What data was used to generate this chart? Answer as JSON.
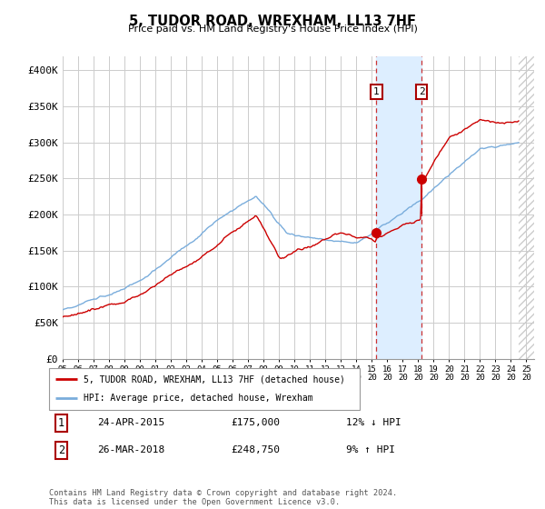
{
  "title": "5, TUDOR ROAD, WREXHAM, LL13 7HF",
  "subtitle": "Price paid vs. HM Land Registry's House Price Index (HPI)",
  "ylabel_ticks": [
    "£0",
    "£50K",
    "£100K",
    "£150K",
    "£200K",
    "£250K",
    "£300K",
    "£350K",
    "£400K"
  ],
  "ytick_values": [
    0,
    50000,
    100000,
    150000,
    200000,
    250000,
    300000,
    350000,
    400000
  ],
  "ylim": [
    0,
    420000
  ],
  "transaction1": {
    "date": "24-APR-2015",
    "price": 175000,
    "hpi_diff": "12% ↓ HPI",
    "label": "1",
    "year": 2015.3
  },
  "transaction2": {
    "date": "26-MAR-2018",
    "price": 248750,
    "hpi_diff": "9% ↑ HPI",
    "label": "2",
    "year": 2018.23
  },
  "legend_label_red": "5, TUDOR ROAD, WREXHAM, LL13 7HF (detached house)",
  "legend_label_blue": "HPI: Average price, detached house, Wrexham",
  "footnote": "Contains HM Land Registry data © Crown copyright and database right 2024.\nThis data is licensed under the Open Government Licence v3.0.",
  "red_color": "#cc0000",
  "blue_color": "#7aaddc",
  "highlight_color": "#ddeeff",
  "hatch_color": "#cccccc",
  "xlim_start": 1995,
  "xlim_end": 2025.5,
  "hatch_start": 2024.5
}
